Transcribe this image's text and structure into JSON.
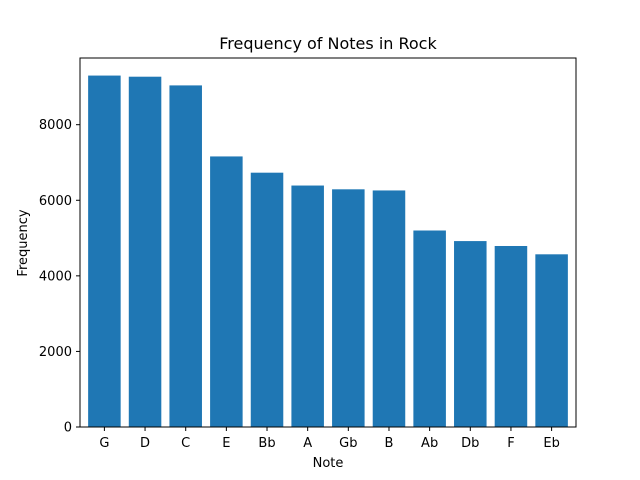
{
  "chart_data": {
    "type": "bar",
    "title": "Frequency of Notes in Rock",
    "xlabel": "Note",
    "ylabel": "Frequency",
    "categories": [
      "G",
      "D",
      "C",
      "E",
      "Bb",
      "A",
      "Gb",
      "B",
      "Ab",
      "Db",
      "F",
      "Eb"
    ],
    "values": [
      9300,
      9270,
      9040,
      7160,
      6730,
      6390,
      6290,
      6260,
      5200,
      4920,
      4790,
      4570
    ],
    "ylim": [
      0,
      9765
    ],
    "yticks": [
      0,
      2000,
      4000,
      6000,
      8000
    ],
    "grid": false,
    "legend": "none",
    "bar_color": "#1f77b4"
  }
}
